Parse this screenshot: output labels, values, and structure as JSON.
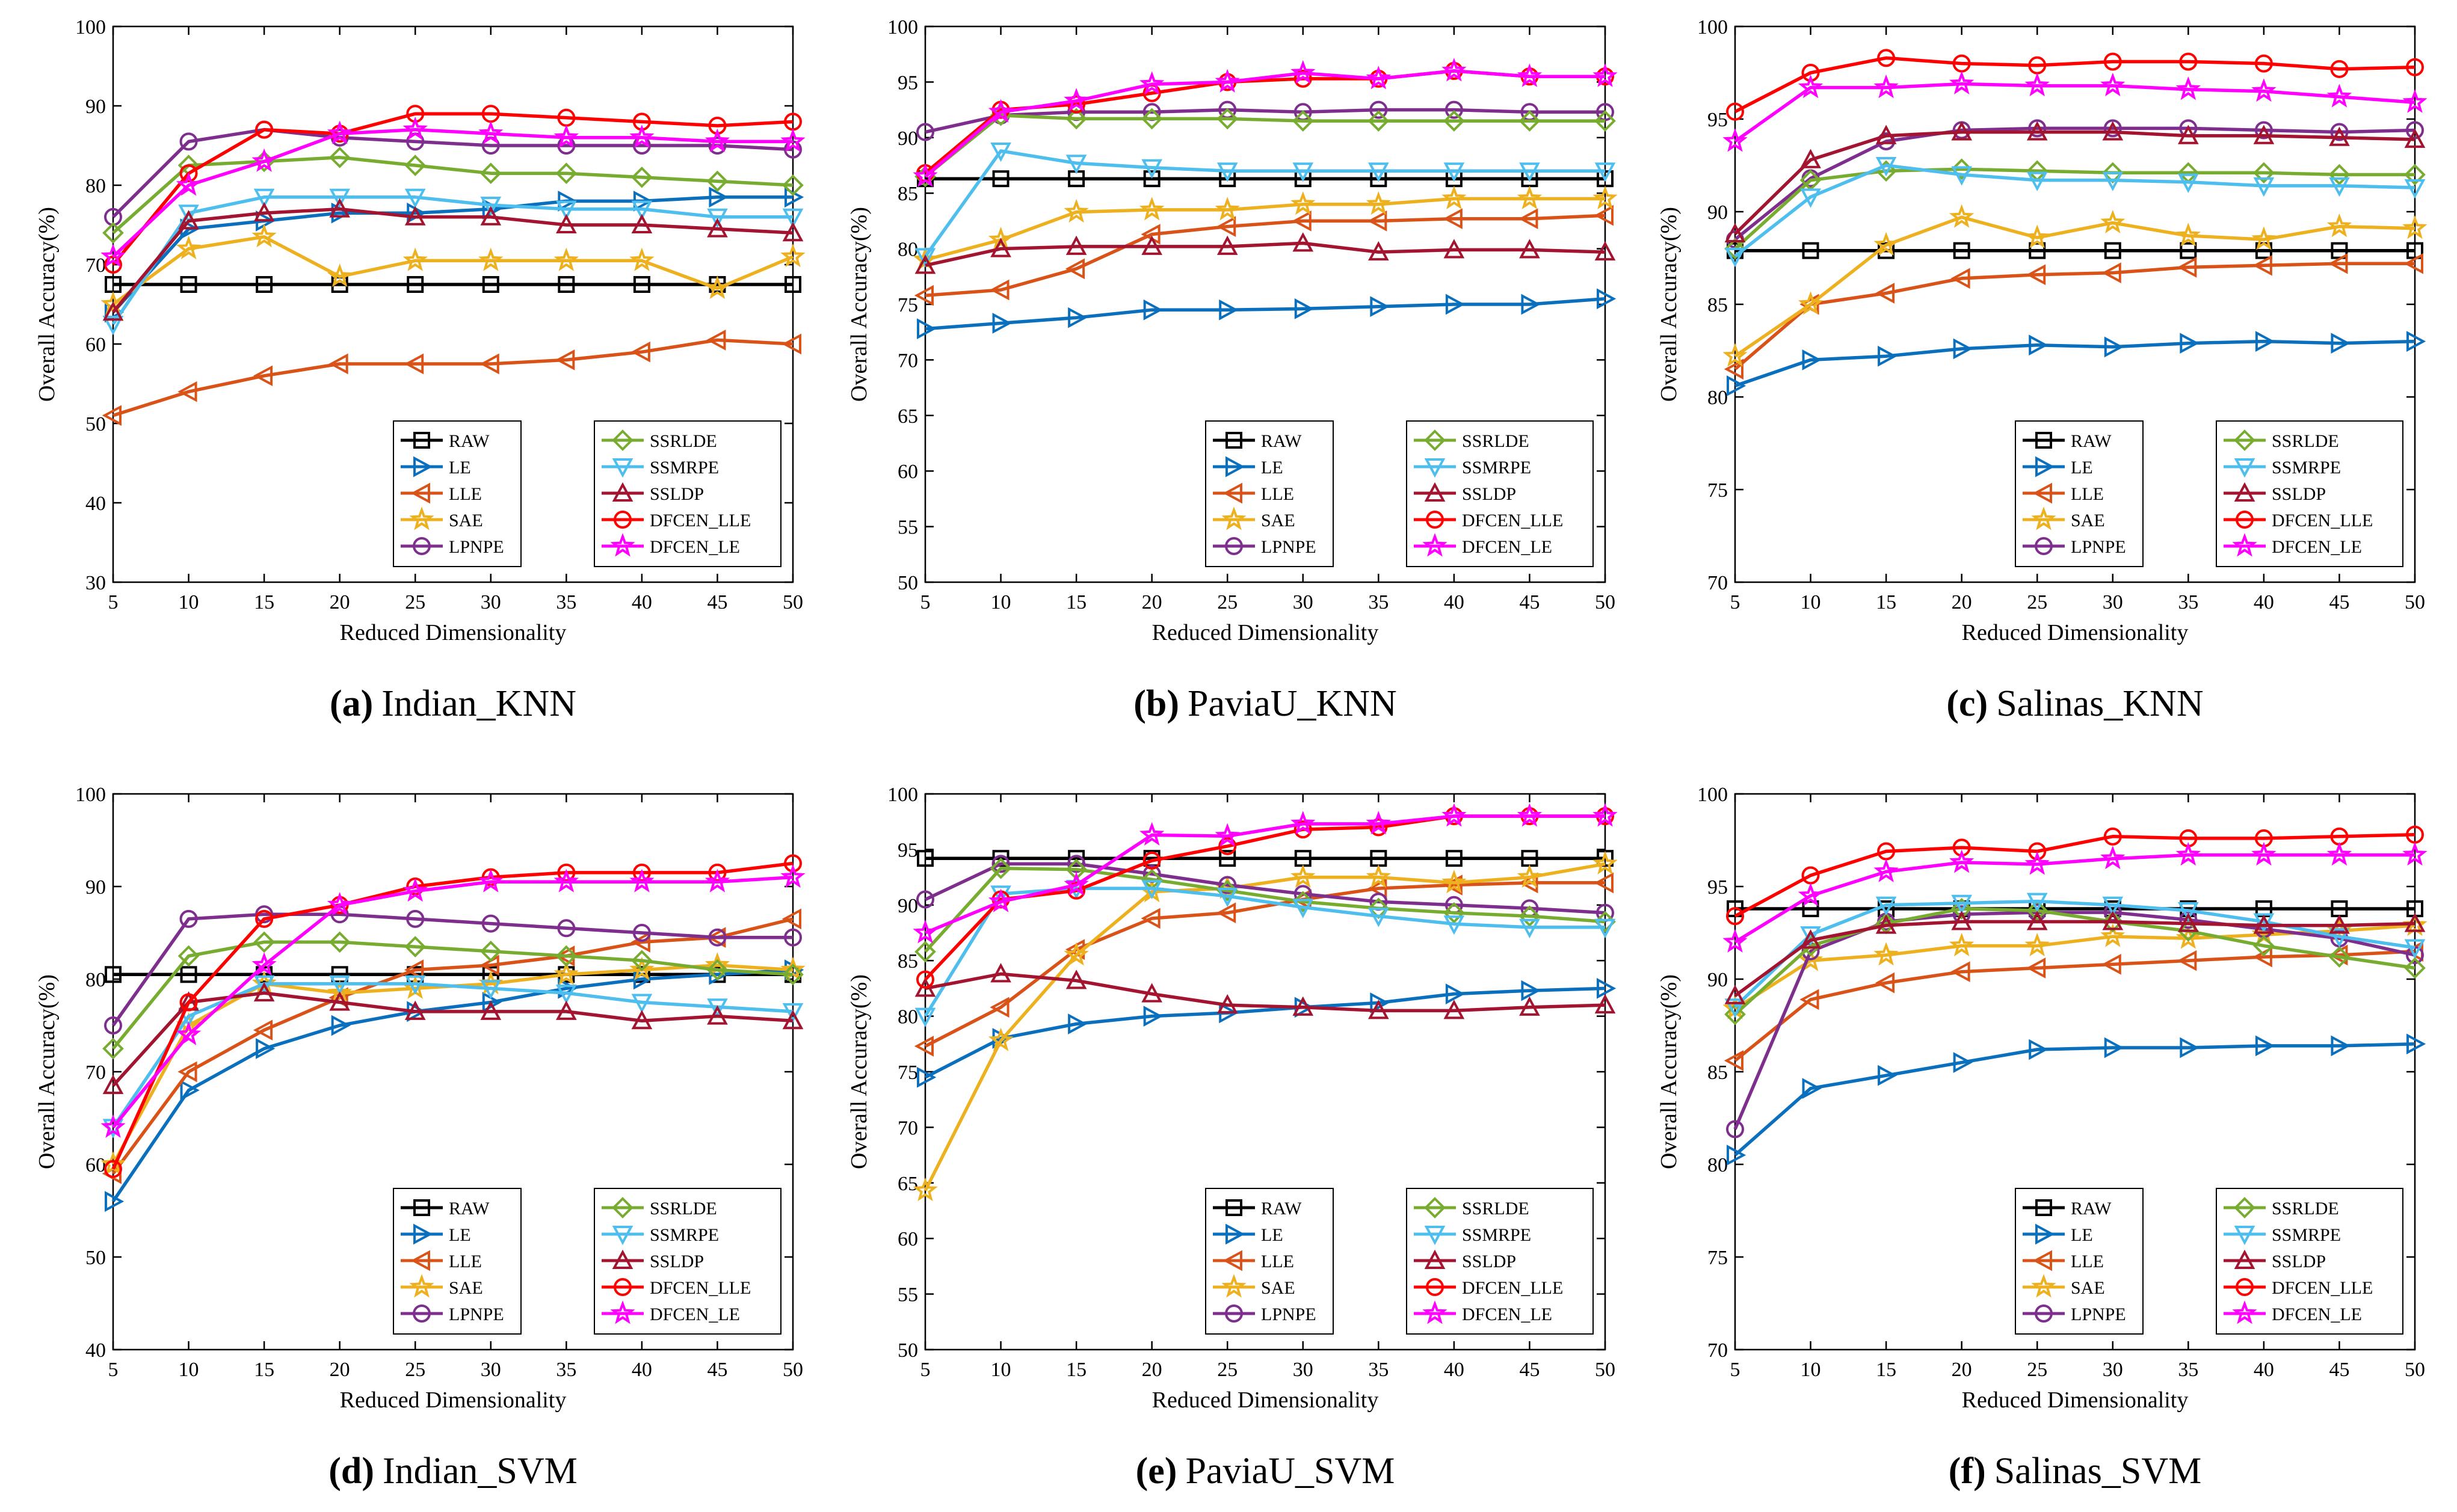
{
  "series_meta": {
    "RAW": {
      "color": "#000000",
      "marker": "square"
    },
    "LE": {
      "color": "#0a6fbd",
      "marker": "tri-right"
    },
    "LLE": {
      "color": "#d95319",
      "marker": "tri-left"
    },
    "SAE": {
      "color": "#edb120",
      "marker": "star"
    },
    "LPNPE": {
      "color": "#7e2f8e",
      "marker": "circle"
    },
    "SSRLDE": {
      "color": "#77ac30",
      "marker": "diamond"
    },
    "SSMRPE": {
      "color": "#4dbeee",
      "marker": "tri-down"
    },
    "SSLDP": {
      "color": "#a2142f",
      "marker": "tri-up"
    },
    "DFCEN_LLE": {
      "color": "#ff0000",
      "marker": "circle"
    },
    "DFCEN_LE": {
      "color": "#ff00ff",
      "marker": "star"
    }
  },
  "legend_columns": [
    [
      "RAW",
      "LE",
      "LLE",
      "SAE",
      "LPNPE"
    ],
    [
      "SSRLDE",
      "SSMRPE",
      "SSLDP",
      "DFCEN_LLE",
      "DFCEN_LE"
    ]
  ],
  "chart_data": [
    {
      "type": "line",
      "panel": "a",
      "caption_letter": "(a)",
      "caption_text": "Indian_KNN",
      "xlabel": "Reduced Dimensionality",
      "ylabel": "Overall Accuracy(%)",
      "x": [
        5,
        10,
        15,
        20,
        25,
        30,
        35,
        40,
        45,
        50
      ],
      "xlim": [
        5,
        50
      ],
      "ylim": [
        30,
        100
      ],
      "yticks": [
        30,
        40,
        50,
        60,
        70,
        80,
        90,
        100
      ],
      "series": [
        {
          "name": "RAW",
          "values": [
            67.5,
            67.5,
            67.5,
            67.5,
            67.5,
            67.5,
            67.5,
            67.5,
            67.5,
            67.5
          ]
        },
        {
          "name": "LE",
          "values": [
            64,
            74.5,
            75.5,
            76.5,
            76.5,
            77,
            78,
            78,
            78.5,
            78.5
          ]
        },
        {
          "name": "LLE",
          "values": [
            51,
            54,
            56,
            57.5,
            57.5,
            57.5,
            58,
            59,
            60.5,
            60
          ]
        },
        {
          "name": "SAE",
          "values": [
            65,
            72,
            73.5,
            68.5,
            70.5,
            70.5,
            70.5,
            70.5,
            67,
            71
          ]
        },
        {
          "name": "LPNPE",
          "values": [
            76,
            85.5,
            87,
            86,
            85.5,
            85,
            85,
            85,
            85,
            84.5
          ]
        },
        {
          "name": "SSRLDE",
          "values": [
            74,
            82.5,
            83,
            83.5,
            82.5,
            81.5,
            81.5,
            81,
            80.5,
            80
          ]
        },
        {
          "name": "SSMRPE",
          "values": [
            62.5,
            76.5,
            78.5,
            78.5,
            78.5,
            77.5,
            77,
            77,
            76,
            76
          ]
        },
        {
          "name": "SSLDP",
          "values": [
            64,
            75.5,
            76.5,
            77,
            76,
            76,
            75,
            75,
            74.5,
            74
          ]
        },
        {
          "name": "DFCEN_LLE",
          "values": [
            70,
            81.5,
            87,
            86.5,
            89,
            89,
            88.5,
            88,
            87.5,
            88
          ]
        },
        {
          "name": "DFCEN_LE",
          "values": [
            71,
            80,
            83,
            86.5,
            87,
            86.5,
            86,
            86,
            85.5,
            85.5
          ]
        }
      ]
    },
    {
      "type": "line",
      "panel": "b",
      "caption_letter": "(b)",
      "caption_text": "PaviaU_KNN",
      "xlabel": "Reduced Dimensionality",
      "ylabel": "Overall Accuracy(%)",
      "x": [
        5,
        10,
        15,
        20,
        25,
        30,
        35,
        40,
        45,
        50
      ],
      "xlim": [
        5,
        50
      ],
      "ylim": [
        50,
        100
      ],
      "yticks": [
        50,
        55,
        60,
        65,
        70,
        75,
        80,
        85,
        90,
        95,
        100
      ],
      "series": [
        {
          "name": "RAW",
          "values": [
            86.3,
            86.3,
            86.3,
            86.3,
            86.3,
            86.3,
            86.3,
            86.3,
            86.3,
            86.3
          ]
        },
        {
          "name": "LE",
          "values": [
            72.8,
            73.3,
            73.8,
            74.5,
            74.5,
            74.6,
            74.8,
            75,
            75,
            75.5
          ]
        },
        {
          "name": "LLE",
          "values": [
            75.8,
            76.3,
            78.2,
            81.3,
            82,
            82.5,
            82.5,
            82.7,
            82.7,
            83
          ]
        },
        {
          "name": "SAE",
          "values": [
            79,
            80.8,
            83.3,
            83.5,
            83.5,
            84,
            84,
            84.5,
            84.5,
            84.5
          ]
        },
        {
          "name": "LPNPE",
          "values": [
            90.5,
            92,
            92.3,
            92.3,
            92.5,
            92.3,
            92.5,
            92.5,
            92.3,
            92.3
          ]
        },
        {
          "name": "SSRLDE",
          "values": [
            86.5,
            92,
            91.7,
            91.7,
            91.7,
            91.5,
            91.5,
            91.5,
            91.5,
            91.5
          ]
        },
        {
          "name": "SSMRPE",
          "values": [
            79.3,
            88.8,
            87.7,
            87.3,
            87,
            87,
            87,
            87,
            87,
            87
          ]
        },
        {
          "name": "SSLDP",
          "values": [
            78.5,
            80,
            80.2,
            80.2,
            80.2,
            80.5,
            79.7,
            79.9,
            79.9,
            79.7
          ]
        },
        {
          "name": "DFCEN_LLE",
          "values": [
            86.8,
            92.5,
            93,
            94,
            95,
            95.3,
            95.3,
            96,
            95.5,
            95.5
          ]
        },
        {
          "name": "DFCEN_LE",
          "values": [
            86.5,
            92.3,
            93.3,
            94.8,
            95,
            95.8,
            95.3,
            96,
            95.5,
            95.5
          ]
        }
      ]
    },
    {
      "type": "line",
      "panel": "c",
      "caption_letter": "(c)",
      "caption_text": "Salinas_KNN",
      "xlabel": "Reduced Dimensionality",
      "ylabel": "Overall Accuracy(%)",
      "x": [
        5,
        10,
        15,
        20,
        25,
        30,
        35,
        40,
        45,
        50
      ],
      "xlim": [
        5,
        50
      ],
      "ylim": [
        70,
        100
      ],
      "yticks": [
        70,
        75,
        80,
        85,
        90,
        95,
        100
      ],
      "series": [
        {
          "name": "RAW",
          "values": [
            87.9,
            87.9,
            87.9,
            87.9,
            87.9,
            87.9,
            87.9,
            87.9,
            87.9,
            87.9
          ]
        },
        {
          "name": "LE",
          "values": [
            80.6,
            82,
            82.2,
            82.6,
            82.8,
            82.7,
            82.9,
            83,
            82.9,
            83
          ]
        },
        {
          "name": "LLE",
          "values": [
            81.5,
            85,
            85.6,
            86.4,
            86.6,
            86.7,
            87,
            87.1,
            87.2,
            87.2
          ]
        },
        {
          "name": "SAE",
          "values": [
            82.2,
            85,
            88.2,
            89.7,
            88.6,
            89.4,
            88.7,
            88.5,
            89.2,
            89.1
          ]
        },
        {
          "name": "LPNPE",
          "values": [
            88.5,
            91.8,
            93.8,
            94.4,
            94.5,
            94.5,
            94.5,
            94.4,
            94.3,
            94.4
          ]
        },
        {
          "name": "SSRLDE",
          "values": [
            88,
            91.7,
            92.2,
            92.3,
            92.2,
            92.1,
            92.1,
            92.1,
            92,
            92
          ]
        },
        {
          "name": "SSMRPE",
          "values": [
            87.6,
            90.8,
            92.5,
            92,
            91.7,
            91.7,
            91.6,
            91.4,
            91.4,
            91.3
          ]
        },
        {
          "name": "SSLDP",
          "values": [
            88.8,
            92.8,
            94.1,
            94.3,
            94.3,
            94.3,
            94.1,
            94.1,
            94,
            93.9
          ]
        },
        {
          "name": "DFCEN_LLE",
          "values": [
            95.4,
            97.5,
            98.3,
            98,
            97.9,
            98.1,
            98.1,
            98,
            97.7,
            97.8
          ]
        },
        {
          "name": "DFCEN_LE",
          "values": [
            93.8,
            96.7,
            96.7,
            96.9,
            96.8,
            96.8,
            96.6,
            96.5,
            96.2,
            95.9
          ]
        }
      ]
    },
    {
      "type": "line",
      "panel": "d",
      "caption_letter": "(d)",
      "caption_text": "Indian_SVM",
      "xlabel": "Reduced Dimensionality",
      "ylabel": "Overall Accuracy(%)",
      "x": [
        5,
        10,
        15,
        20,
        25,
        30,
        35,
        40,
        45,
        50
      ],
      "xlim": [
        5,
        50
      ],
      "ylim": [
        40,
        100
      ],
      "yticks": [
        40,
        50,
        60,
        70,
        80,
        90,
        100
      ],
      "series": [
        {
          "name": "RAW",
          "values": [
            80.5,
            80.5,
            80.5,
            80.5,
            80.5,
            80.5,
            80.5,
            80.5,
            80.5,
            80.5
          ]
        },
        {
          "name": "LE",
          "values": [
            56,
            68,
            72.5,
            75,
            76.5,
            77.5,
            79,
            80,
            80.5,
            81
          ]
        },
        {
          "name": "LLE",
          "values": [
            59,
            70,
            74.5,
            78,
            81,
            81.5,
            82.5,
            84,
            84.5,
            86.5
          ]
        },
        {
          "name": "SAE",
          "values": [
            60,
            75,
            79.5,
            78.5,
            79,
            79.5,
            80.5,
            81,
            81.5,
            81
          ]
        },
        {
          "name": "LPNPE",
          "values": [
            75,
            86.5,
            87,
            87,
            86.5,
            86,
            85.5,
            85,
            84.5,
            84.5
          ]
        },
        {
          "name": "SSRLDE",
          "values": [
            72.5,
            82.5,
            84,
            84,
            83.5,
            83,
            82.5,
            82,
            81,
            80.5
          ]
        },
        {
          "name": "SSMRPE",
          "values": [
            64,
            76,
            79.5,
            79.5,
            79.5,
            79,
            78.5,
            77.5,
            77,
            76.5
          ]
        },
        {
          "name": "SSLDP",
          "values": [
            68.5,
            77.5,
            78.5,
            77.5,
            76.5,
            76.5,
            76.5,
            75.5,
            76,
            75.5
          ]
        },
        {
          "name": "DFCEN_LLE",
          "values": [
            59.5,
            77.5,
            86.5,
            88,
            90,
            91,
            91.5,
            91.5,
            91.5,
            92.5
          ]
        },
        {
          "name": "DFCEN_LE",
          "values": [
            64,
            74,
            81.5,
            88,
            89.5,
            90.5,
            90.5,
            90.5,
            90.5,
            91
          ]
        }
      ]
    },
    {
      "type": "line",
      "panel": "e",
      "caption_letter": "(e)",
      "caption_text": "PaviaU_SVM",
      "xlabel": "Reduced Dimensionality",
      "ylabel": "Overall Accuracy(%)",
      "x": [
        5,
        10,
        15,
        20,
        25,
        30,
        35,
        40,
        45,
        50
      ],
      "xlim": [
        5,
        50
      ],
      "ylim": [
        50,
        100
      ],
      "yticks": [
        50,
        55,
        60,
        65,
        70,
        75,
        80,
        85,
        90,
        95,
        100
      ],
      "series": [
        {
          "name": "RAW",
          "values": [
            94.2,
            94.2,
            94.2,
            94.2,
            94.2,
            94.2,
            94.2,
            94.2,
            94.2,
            94.2
          ]
        },
        {
          "name": "LE",
          "values": [
            74.5,
            78,
            79.3,
            80,
            80.3,
            80.8,
            81.2,
            82,
            82.3,
            82.5
          ]
        },
        {
          "name": "LLE",
          "values": [
            77.3,
            80.8,
            86,
            88.8,
            89.3,
            90.5,
            91.5,
            91.8,
            92,
            92
          ]
        },
        {
          "name": "SAE",
          "values": [
            64.3,
            77.8,
            85.5,
            91.2,
            91.5,
            92.5,
            92.5,
            92,
            92.5,
            93.7
          ]
        },
        {
          "name": "LPNPE",
          "values": [
            90.5,
            93.7,
            93.7,
            92.8,
            91.8,
            91,
            90.3,
            90,
            89.7,
            89.3
          ]
        },
        {
          "name": "SSRLDE",
          "values": [
            85.8,
            93.3,
            93.2,
            92.3,
            91.3,
            90.3,
            89.7,
            89.3,
            89,
            88.5
          ]
        },
        {
          "name": "SSMRPE",
          "values": [
            80,
            91,
            91.5,
            91.5,
            90.8,
            89.8,
            89,
            88.3,
            88,
            88
          ]
        },
        {
          "name": "SSLDP",
          "values": [
            82.5,
            83.8,
            83.2,
            82,
            81,
            80.8,
            80.5,
            80.5,
            80.8,
            81
          ]
        },
        {
          "name": "DFCEN_LLE",
          "values": [
            83.3,
            90.5,
            91.3,
            94,
            95.3,
            96.8,
            97,
            98,
            98,
            98
          ]
        },
        {
          "name": "DFCEN_LE",
          "values": [
            87.5,
            90.3,
            91.8,
            96.3,
            96.2,
            97.3,
            97.3,
            98,
            98,
            98
          ]
        }
      ]
    },
    {
      "type": "line",
      "panel": "f",
      "caption_letter": "(f)",
      "caption_text": "Salinas_SVM",
      "xlabel": "Reduced Dimensionality",
      "ylabel": "Overall Accuracy(%)",
      "x": [
        5,
        10,
        15,
        20,
        25,
        30,
        35,
        40,
        45,
        50
      ],
      "xlim": [
        5,
        50
      ],
      "ylim": [
        70,
        100
      ],
      "yticks": [
        70,
        75,
        80,
        85,
        90,
        95,
        100
      ],
      "series": [
        {
          "name": "RAW",
          "values": [
            93.8,
            93.8,
            93.8,
            93.8,
            93.8,
            93.8,
            93.8,
            93.8,
            93.8,
            93.8
          ]
        },
        {
          "name": "LE",
          "values": [
            80.5,
            84.1,
            84.8,
            85.5,
            86.2,
            86.3,
            86.3,
            86.4,
            86.4,
            86.5
          ]
        },
        {
          "name": "LLE",
          "values": [
            85.6,
            88.9,
            89.8,
            90.4,
            90.6,
            90.8,
            91,
            91.2,
            91.3,
            91.5
          ]
        },
        {
          "name": "SAE",
          "values": [
            88.4,
            91,
            91.3,
            91.8,
            91.8,
            92.3,
            92.2,
            92.4,
            92.6,
            92.9
          ]
        },
        {
          "name": "LPNPE",
          "values": [
            81.9,
            91.5,
            93.1,
            93.5,
            93.6,
            93.6,
            93.2,
            92.7,
            92.2,
            91.3
          ]
        },
        {
          "name": "SSRLDE",
          "values": [
            88.1,
            91.8,
            93,
            93.8,
            93.7,
            93.1,
            92.6,
            91.8,
            91.2,
            90.6
          ]
        },
        {
          "name": "SSMRPE",
          "values": [
            88.5,
            92.4,
            94,
            94.1,
            94.2,
            94,
            93.7,
            93.1,
            92.3,
            91.7
          ]
        },
        {
          "name": "SSLDP",
          "values": [
            89.1,
            92.1,
            92.9,
            93.1,
            93.1,
            93.1,
            93,
            92.9,
            92.9,
            93
          ]
        },
        {
          "name": "DFCEN_LLE",
          "values": [
            93.4,
            95.6,
            96.9,
            97.1,
            96.9,
            97.7,
            97.6,
            97.6,
            97.7,
            97.8
          ]
        },
        {
          "name": "DFCEN_LE",
          "values": [
            92,
            94.5,
            95.8,
            96.3,
            96.2,
            96.5,
            96.7,
            96.7,
            96.7,
            96.7
          ]
        }
      ]
    }
  ]
}
